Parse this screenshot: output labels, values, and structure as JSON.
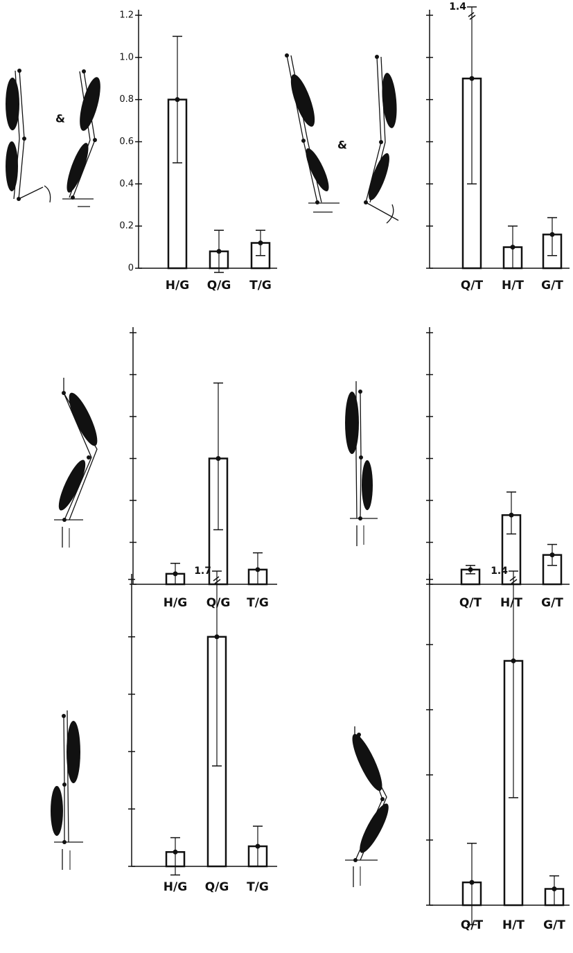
{
  "chart_data": [
    {
      "type": "bar",
      "categories": [
        "H/G",
        "Q/G",
        "T/G"
      ],
      "values": [
        0.8,
        0.08,
        0.12
      ],
      "lower": [
        0.5,
        -0.02,
        0.06
      ],
      "upper": [
        1.1,
        0.18,
        0.18
      ],
      "ylim": [
        0,
        1.2
      ],
      "yticks": [
        0,
        0.2,
        0.4,
        0.6,
        0.8,
        {
          "value": 1,
          "label": "1.0"
        },
        1.2
      ],
      "tick_labels": true
    },
    {
      "type": "bar",
      "categories": [
        "Q/T",
        "H/T",
        "G/T"
      ],
      "values": [
        0.9,
        0.1,
        0.16
      ],
      "lower": [
        0.4,
        0,
        0.06
      ],
      "upper": [
        1.4,
        0.2,
        0.24
      ],
      "ylim": [
        0,
        1.2
      ],
      "yticks": [
        0,
        0.2,
        0.4,
        0.6,
        0.8,
        1,
        1.2
      ],
      "tick_labels": false
    },
    {
      "type": "bar",
      "categories": [
        "H/G",
        "Q/G",
        "T/G"
      ],
      "values": [
        0.05,
        0.6,
        0.07
      ],
      "lower": [
        0,
        0.26,
        0
      ],
      "upper": [
        0.1,
        0.96,
        0.15
      ],
      "ylim": [
        0,
        1.2
      ],
      "yticks": [
        0,
        0.2,
        0.4,
        0.6,
        0.8,
        1,
        1.2
      ],
      "tick_labels": false
    },
    {
      "type": "bar",
      "categories": [
        "Q/T",
        "H/T",
        "G/T"
      ],
      "values": [
        0.07,
        0.33,
        0.14
      ],
      "lower": [
        0.05,
        0.24,
        0.09
      ],
      "upper": [
        0.09,
        0.44,
        0.19
      ],
      "ylim": [
        0,
        1.2
      ],
      "yticks": [
        0,
        0.2,
        0.4,
        0.6,
        0.8,
        1,
        1.2
      ],
      "tick_labels": false
    },
    {
      "type": "bar",
      "categories": [
        "H/G",
        "Q/G",
        "T/G"
      ],
      "values": [
        0.05,
        0.8,
        0.07
      ],
      "lower": [
        -0.03,
        0.35,
        0
      ],
      "upper": [
        0.1,
        1.7,
        0.14
      ],
      "ylim": [
        0,
        1
      ],
      "yticks": [
        0,
        0.2,
        0.4,
        0.6,
        0.8,
        1
      ],
      "tick_labels": false
    },
    {
      "type": "bar",
      "categories": [
        "Q/T",
        "H/T",
        "G/T"
      ],
      "values": [
        0.07,
        0.75,
        0.05
      ],
      "lower": [
        -0.06,
        0.33,
        0
      ],
      "upper": [
        0.19,
        1.4,
        0.09
      ],
      "ylim": [
        0,
        1
      ],
      "yticks": [
        0,
        0.2,
        0.4,
        0.6,
        0.8,
        1
      ],
      "tick_labels": false
    }
  ]
}
